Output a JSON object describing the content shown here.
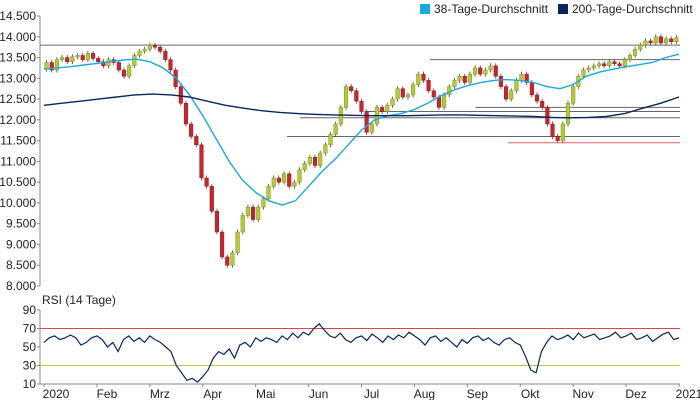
{
  "chart_data": [
    {
      "type": "candlestick",
      "title": "",
      "xlabel": "",
      "ylabel": "",
      "ylim": [
        8000,
        14500
      ],
      "yticks": [
        "8.000",
        "8.500",
        "9.000",
        "9.500",
        "10.000",
        "10.500",
        "11.000",
        "11.500",
        "12.000",
        "12.500",
        "13.000",
        "13.500",
        "14.000",
        "14.500"
      ],
      "months": [
        "2020",
        "Feb",
        "Mrz",
        "Apr",
        "Mai",
        "Jun",
        "Jul",
        "Aug",
        "Sep",
        "Okt",
        "Nov",
        "Dez",
        "2021"
      ],
      "legend": [
        {
          "name": "38-Tage-Durchschnitt",
          "color": "#19a9e0"
        },
        {
          "name": "200-Tage-Durchschnitt",
          "color": "#0a2463"
        }
      ],
      "legend_position": "top-right",
      "candles": [
        [
          13.22,
          13.38
        ],
        [
          13.38,
          13.2
        ],
        [
          13.2,
          13.45
        ],
        [
          13.45,
          13.5
        ],
        [
          13.5,
          13.4
        ],
        [
          13.4,
          13.52
        ],
        [
          13.52,
          13.55
        ],
        [
          13.55,
          13.45
        ],
        [
          13.45,
          13.6
        ],
        [
          13.6,
          13.48
        ],
        [
          13.48,
          13.4
        ],
        [
          13.4,
          13.3
        ],
        [
          13.3,
          13.45
        ],
        [
          13.45,
          13.38
        ],
        [
          13.38,
          13.2
        ],
        [
          13.2,
          13.05
        ],
        [
          13.05,
          13.3
        ],
        [
          13.3,
          13.55
        ],
        [
          13.55,
          13.65
        ],
        [
          13.65,
          13.7
        ],
        [
          13.7,
          13.8
        ],
        [
          13.8,
          13.75
        ],
        [
          13.75,
          13.65
        ],
        [
          13.65,
          13.45
        ],
        [
          13.45,
          13.2
        ],
        [
          13.2,
          12.8
        ],
        [
          12.8,
          12.4
        ],
        [
          12.4,
          11.9
        ],
        [
          11.9,
          11.6
        ],
        [
          11.6,
          11.4
        ],
        [
          11.4,
          10.6
        ],
        [
          10.6,
          10.4
        ],
        [
          10.4,
          9.8
        ],
        [
          9.8,
          9.3
        ],
        [
          9.3,
          8.7
        ],
        [
          8.7,
          8.5
        ],
        [
          8.5,
          8.8
        ],
        [
          8.8,
          9.3
        ],
        [
          9.3,
          9.7
        ],
        [
          9.7,
          9.9
        ],
        [
          9.9,
          9.6
        ],
        [
          9.6,
          9.9
        ],
        [
          9.9,
          10.1
        ],
        [
          10.1,
          10.4
        ],
        [
          10.4,
          10.6
        ],
        [
          10.6,
          10.5
        ],
        [
          10.5,
          10.7
        ],
        [
          10.7,
          10.4
        ],
        [
          10.4,
          10.5
        ],
        [
          10.5,
          10.8
        ],
        [
          10.8,
          10.95
        ],
        [
          10.95,
          11.1
        ],
        [
          11.1,
          10.9
        ],
        [
          10.9,
          11.2
        ],
        [
          11.2,
          11.4
        ],
        [
          11.4,
          11.65
        ],
        [
          11.65,
          11.9
        ],
        [
          11.9,
          12.3
        ],
        [
          12.3,
          12.8
        ],
        [
          12.8,
          12.7
        ],
        [
          12.7,
          12.45
        ],
        [
          12.45,
          12.2
        ],
        [
          12.2,
          11.7
        ],
        [
          11.7,
          11.9
        ],
        [
          11.9,
          12.3
        ],
        [
          12.3,
          12.2
        ],
        [
          12.2,
          12.35
        ],
        [
          12.35,
          12.5
        ],
        [
          12.5,
          12.75
        ],
        [
          12.75,
          12.55
        ],
        [
          12.55,
          12.6
        ],
        [
          12.6,
          12.85
        ],
        [
          12.85,
          13.1
        ],
        [
          13.1,
          12.95
        ],
        [
          12.95,
          12.7
        ],
        [
          12.7,
          12.55
        ],
        [
          12.55,
          12.3
        ],
        [
          12.3,
          12.6
        ],
        [
          12.6,
          12.8
        ],
        [
          12.8,
          12.95
        ],
        [
          12.95,
          13.05
        ],
        [
          13.05,
          12.9
        ],
        [
          12.9,
          13.1
        ],
        [
          13.1,
          13.25
        ],
        [
          13.25,
          13.1
        ],
        [
          13.1,
          13.2
        ],
        [
          13.2,
          13.3
        ],
        [
          13.3,
          13.05
        ],
        [
          13.05,
          12.8
        ],
        [
          12.8,
          12.5
        ],
        [
          12.5,
          12.7
        ],
        [
          12.7,
          12.95
        ],
        [
          12.95,
          13.1
        ],
        [
          13.1,
          12.9
        ],
        [
          12.9,
          12.6
        ],
        [
          12.6,
          12.45
        ],
        [
          12.45,
          12.3
        ],
        [
          12.3,
          11.9
        ],
        [
          11.9,
          11.6
        ],
        [
          11.6,
          11.5
        ],
        [
          11.5,
          11.9
        ],
        [
          11.9,
          12.4
        ],
        [
          12.4,
          12.8
        ],
        [
          12.8,
          13.05
        ],
        [
          13.05,
          13.2
        ],
        [
          13.2,
          13.25
        ],
        [
          13.25,
          13.3
        ],
        [
          13.3,
          13.35
        ],
        [
          13.35,
          13.3
        ],
        [
          13.3,
          13.4
        ],
        [
          13.4,
          13.35
        ],
        [
          13.35,
          13.3
        ],
        [
          13.3,
          13.45
        ],
        [
          13.45,
          13.55
        ],
        [
          13.55,
          13.7
        ],
        [
          13.7,
          13.8
        ],
        [
          13.8,
          13.9
        ],
        [
          13.9,
          13.85
        ],
        [
          13.85,
          14.0
        ],
        [
          14.0,
          13.85
        ],
        [
          13.85,
          13.95
        ],
        [
          13.95,
          13.88
        ],
        [
          13.88,
          13.98
        ]
      ],
      "series": [
        {
          "name": "38-Tage-Durchschnitt",
          "values": [
            13.22,
            13.25,
            13.28,
            13.32,
            13.36,
            13.4,
            13.44,
            13.46,
            13.4,
            13.25,
            13.0,
            12.6,
            12.1,
            11.55,
            11.0,
            10.55,
            10.25,
            10.05,
            9.95,
            10.05,
            10.4,
            10.75,
            11.05,
            11.4,
            11.75,
            12.0,
            12.1,
            12.15,
            12.25,
            12.4,
            12.58,
            12.72,
            12.82,
            12.9,
            12.95,
            12.97,
            12.95,
            12.9,
            12.8,
            12.75,
            12.85,
            13.05,
            13.15,
            13.22,
            13.28,
            13.33,
            13.38,
            13.5,
            13.58
          ]
        },
        {
          "name": "200-Tage-Durchschnitt",
          "values": [
            12.35,
            12.4,
            12.45,
            12.5,
            12.55,
            12.6,
            12.62,
            12.6,
            12.55,
            12.45,
            12.35,
            12.28,
            12.22,
            12.18,
            12.15,
            12.13,
            12.12,
            12.11,
            12.1,
            12.1,
            12.1,
            12.11,
            12.12,
            12.12,
            12.11,
            12.1,
            12.09,
            12.08,
            12.06,
            12.05,
            12.06,
            12.08,
            12.15,
            12.28,
            12.4,
            12.55
          ]
        }
      ],
      "support_lines": [
        13.8,
        13.45,
        12.3,
        12.2,
        12.05,
        11.6,
        11.45
      ],
      "support_line_start": [
        0.0,
        0.6,
        0.67,
        0.5,
        0.4,
        0.38,
        0.72
      ]
    },
    {
      "type": "line",
      "title": "RSI (14 Tage)",
      "ylim": [
        10,
        90
      ],
      "yticks": [
        "90",
        "70",
        "50",
        "30",
        "10"
      ],
      "reference_lines": [
        70,
        30
      ],
      "series": [
        {
          "name": "RSI",
          "values": [
            55,
            60,
            62,
            58,
            60,
            63,
            60,
            52,
            55,
            60,
            62,
            58,
            50,
            55,
            45,
            58,
            62,
            56,
            60,
            55,
            62,
            58,
            55,
            50,
            45,
            30,
            22,
            14,
            16,
            12,
            18,
            25,
            38,
            45,
            42,
            48,
            38,
            52,
            55,
            50,
            60,
            56,
            60,
            58,
            55,
            62,
            58,
            65,
            60,
            66,
            63,
            70,
            75,
            68,
            62,
            60,
            65,
            58,
            55,
            60,
            62,
            57,
            64,
            60,
            55,
            62,
            58,
            63,
            60,
            66,
            62,
            58,
            52,
            60,
            62,
            56,
            60,
            55,
            50,
            58,
            54,
            60,
            62,
            57,
            60,
            55,
            52,
            58,
            60,
            55,
            52,
            40,
            25,
            22,
            45,
            55,
            62,
            58,
            60,
            63,
            58,
            65,
            60,
            62,
            64,
            58,
            60,
            62,
            66,
            60,
            62,
            65,
            58,
            60,
            63,
            56,
            60,
            64,
            66,
            58,
            60
          ]
        }
      ]
    }
  ]
}
